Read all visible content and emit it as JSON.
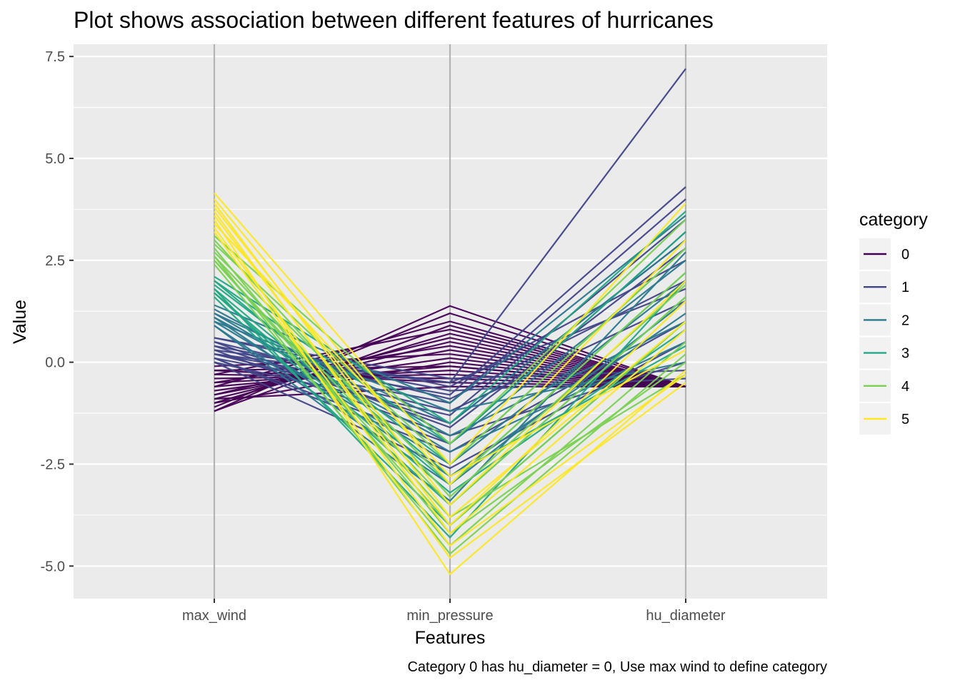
{
  "chart_data": {
    "type": "line",
    "subtype": "parallel-coordinates",
    "title": "Plot shows association between different features of hurricanes",
    "xlabel": "Features",
    "ylabel": "Value",
    "caption": "Category 0 has hu_diameter = 0, Use max wind to define category",
    "categories": [
      "max_wind",
      "min_pressure",
      "hu_diameter"
    ],
    "y_ticks": [
      "7.5",
      "5.0",
      "2.5",
      "0.0",
      "-2.5",
      "-5.0"
    ],
    "y_tick_values": [
      7.5,
      5.0,
      2.5,
      0.0,
      -2.5,
      -5.0
    ],
    "ylim": [
      -5.8,
      7.8
    ],
    "grid": true,
    "legend": {
      "title": "category",
      "position": "right",
      "items": [
        "0",
        "1",
        "2",
        "3",
        "4",
        "5"
      ]
    },
    "colors": {
      "0": "#440154",
      "1": "#414487",
      "2": "#2A788E",
      "3": "#22A884",
      "4": "#7AD151",
      "5": "#FDE725"
    },
    "series": [
      {
        "category": "0",
        "lines": [
          [
            -1.2,
            1.38,
            -0.6
          ],
          [
            -1.2,
            0.9,
            -0.6
          ],
          [
            -1.0,
            0.7,
            -0.6
          ],
          [
            -0.9,
            0.5,
            -0.6
          ],
          [
            -0.8,
            0.3,
            -0.6
          ],
          [
            -0.7,
            0.1,
            -0.6
          ],
          [
            -0.6,
            -0.1,
            -0.6
          ],
          [
            -0.5,
            -0.2,
            -0.6
          ],
          [
            -0.4,
            -0.3,
            -0.6
          ],
          [
            -0.3,
            -0.4,
            -0.6
          ],
          [
            -0.2,
            -0.5,
            -0.6
          ],
          [
            -0.1,
            0.2,
            -0.6
          ],
          [
            -0.9,
            -0.6,
            -0.6
          ],
          [
            -1.1,
            1.2,
            -0.6
          ],
          [
            -0.6,
            1.0,
            -0.6
          ],
          [
            -0.3,
            0.8,
            -0.6
          ],
          [
            -0.8,
            0.6,
            -0.6
          ],
          [
            -0.5,
            0.4,
            -0.6
          ],
          [
            -1.0,
            0.0,
            -0.6
          ],
          [
            -0.2,
            -0.1,
            -0.6
          ]
        ]
      },
      {
        "category": "1",
        "lines": [
          [
            0.3,
            -0.5,
            7.2
          ],
          [
            0.2,
            -0.8,
            4.3
          ],
          [
            0.1,
            -1.0,
            4.0
          ],
          [
            0.0,
            -1.3,
            3.5
          ],
          [
            0.4,
            -1.5,
            3.0
          ],
          [
            0.6,
            -0.6,
            2.5
          ],
          [
            0.5,
            -0.9,
            2.0
          ],
          [
            0.2,
            -1.2,
            1.5
          ],
          [
            0.1,
            -2.2,
            1.0
          ],
          [
            0.0,
            -2.6,
            0.5
          ],
          [
            0.3,
            -1.8,
            0.0
          ],
          [
            0.6,
            -0.4,
            -0.2
          ],
          [
            0.4,
            -0.7,
            -0.4
          ],
          [
            0.5,
            -1.6,
            2.8
          ],
          [
            0.1,
            -2.0,
            3.2
          ],
          [
            0.2,
            -0.5,
            1.8
          ]
        ]
      },
      {
        "category": "2",
        "lines": [
          [
            1.4,
            -1.0,
            3.6
          ],
          [
            1.2,
            -1.5,
            3.0
          ],
          [
            1.1,
            -2.0,
            2.5
          ],
          [
            1.0,
            -2.5,
            2.0
          ],
          [
            0.9,
            -3.0,
            1.5
          ],
          [
            1.3,
            -1.8,
            1.0
          ],
          [
            1.2,
            -2.2,
            0.5
          ],
          [
            1.0,
            -1.2,
            0.0
          ],
          [
            0.9,
            -3.4,
            2.7
          ],
          [
            1.1,
            -2.8,
            1.2
          ]
        ]
      },
      {
        "category": "3",
        "lines": [
          [
            2.1,
            -1.5,
            3.7
          ],
          [
            2.0,
            -2.0,
            3.2
          ],
          [
            1.9,
            -2.5,
            2.8
          ],
          [
            1.8,
            -3.0,
            2.2
          ],
          [
            1.7,
            -3.5,
            1.6
          ],
          [
            1.6,
            -4.0,
            1.0
          ],
          [
            2.0,
            -2.8,
            0.4
          ],
          [
            1.8,
            -4.3,
            2.0
          ],
          [
            1.7,
            -3.2,
            0.8
          ]
        ]
      },
      {
        "category": "4",
        "lines": [
          [
            3.1,
            -2.0,
            3.5
          ],
          [
            2.9,
            -2.5,
            2.8
          ],
          [
            2.7,
            -3.0,
            2.2
          ],
          [
            2.6,
            -3.5,
            1.6
          ],
          [
            2.5,
            -4.0,
            1.0
          ],
          [
            2.4,
            -4.5,
            0.5
          ],
          [
            2.6,
            -4.7,
            0.2
          ],
          [
            2.8,
            -4.2,
            0.0
          ],
          [
            2.5,
            -3.8,
            -0.3
          ],
          [
            3.0,
            -3.3,
            1.9
          ]
        ]
      },
      {
        "category": "5",
        "lines": [
          [
            4.15,
            -2.5,
            3.9
          ],
          [
            4.0,
            -3.0,
            3.0
          ],
          [
            3.8,
            -3.5,
            2.0
          ],
          [
            3.6,
            -4.0,
            1.5
          ],
          [
            3.5,
            -5.2,
            -0.2
          ],
          [
            3.3,
            -4.5,
            -0.3
          ],
          [
            3.2,
            -4.8,
            -0.5
          ],
          [
            3.7,
            -4.2,
            0.8
          ],
          [
            3.9,
            -3.8,
            1.0
          ],
          [
            3.4,
            -2.8,
            0.3
          ]
        ]
      }
    ]
  }
}
